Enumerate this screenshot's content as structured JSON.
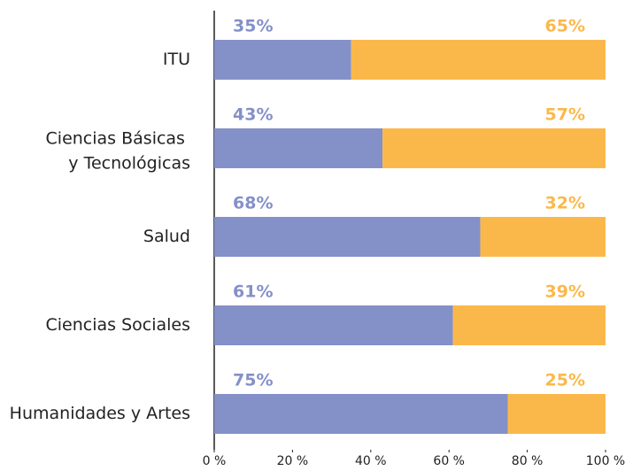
{
  "chart_data": {
    "type": "stacked-bar-horizontal",
    "categories": [
      "ITU",
      "Ciencias Básicas y Tecnológicas",
      "Salud",
      "Ciencias Sociales",
      "Humanidades y Artes"
    ],
    "series": [
      {
        "color": "#8490c8",
        "values": [
          35,
          43,
          68,
          61,
          75
        ],
        "value_labels": [
          "35%",
          "43%",
          "68%",
          "61%",
          "75%"
        ]
      },
      {
        "color": "#fbb84a",
        "values": [
          65,
          57,
          32,
          39,
          25
        ],
        "value_labels": [
          "65%",
          "57%",
          "32%",
          "39%",
          "25%"
        ]
      }
    ],
    "xlim": [
      0,
      100
    ],
    "xticks": [
      {
        "value": 0,
        "label": "0 %"
      },
      {
        "value": 20,
        "label": "20 %"
      },
      {
        "value": 40,
        "label": "40 %"
      },
      {
        "value": 60,
        "label": "60 %"
      },
      {
        "value": 80,
        "label": "80 %"
      },
      {
        "value": 100,
        "label": "100 %"
      }
    ]
  }
}
